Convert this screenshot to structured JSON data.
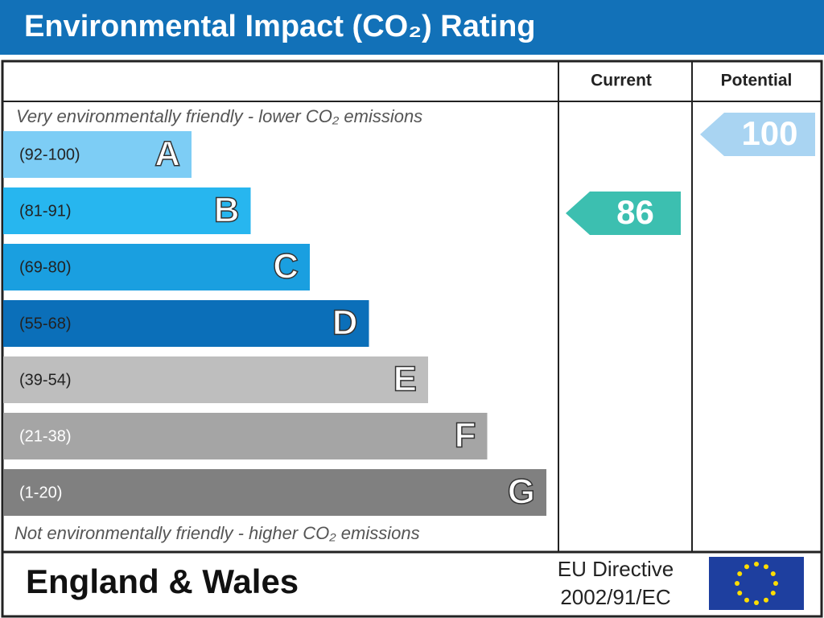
{
  "header": {
    "title": "Environmental Impact (CO₂) Rating"
  },
  "columns": {
    "current": "Current",
    "potential": "Potential"
  },
  "top_note": "Very environmentally friendly - lower CO₂ emissions",
  "bottom_note": "Not environmentally friendly - higher CO₂ emissions",
  "bands": [
    {
      "range": "(92-100)",
      "letter": "A",
      "color": "#7dcdf5"
    },
    {
      "range": "(81-91)",
      "letter": "B",
      "color": "#27b6ef"
    },
    {
      "range": "(69-80)",
      "letter": "C",
      "color": "#1a9fe0"
    },
    {
      "range": "(55-68)",
      "letter": "D",
      "color": "#0b6fb9"
    },
    {
      "range": "(39-54)",
      "letter": "E",
      "color": "#bebebe"
    },
    {
      "range": "(21-38)",
      "letter": "F",
      "color": "#a5a5a5"
    },
    {
      "range": "(1-20)",
      "letter": "G",
      "color": "#808080"
    }
  ],
  "current": {
    "value": 86,
    "color": "#3cbfb0"
  },
  "potential": {
    "value": 100,
    "color": "#a9d4f2"
  },
  "footer": {
    "country": "England & Wales",
    "directive": "EU Directive",
    "directive_code": "2002/91/EC"
  }
}
